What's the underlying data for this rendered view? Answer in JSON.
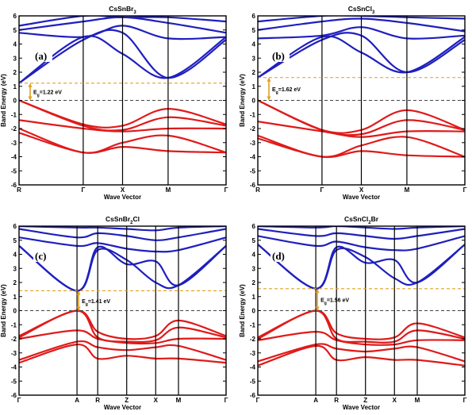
{
  "chart_data": [
    {
      "type": "line",
      "title": "CsSnBr3",
      "panel_label": "(a)",
      "xlabel": "Wave Vector",
      "ylabel": "Band Energy (eV)",
      "ylim": [
        -6,
        6
      ],
      "yticks": [
        "-6",
        "-5",
        "-4",
        "-3",
        "-2",
        "-1",
        "0",
        "1",
        "2",
        "3",
        "4",
        "5",
        "6"
      ],
      "kpoints": [
        "R",
        "Γ",
        "X",
        "M",
        "Γ"
      ],
      "gap_label": "Eg=1.22 eV",
      "gap_ev": 1.22,
      "fermi_level": 0,
      "vbm_k_index": 0,
      "grid": false,
      "colors": {
        "conduction": "#1f1fbf",
        "valence": "#e01a1a",
        "fermi": "#444444",
        "gap": "#e0a020"
      },
      "series": [
        {
          "band": "conduction",
          "values": [
            1.22,
            4.3,
            4.8,
            1.6,
            4.3
          ]
        },
        {
          "band": "conduction",
          "values": [
            1.22,
            4.5,
            3.3,
            1.6,
            4.5
          ]
        },
        {
          "band": "conduction",
          "values": [
            4.8,
            4.5,
            5.3,
            4.4,
            4.5
          ]
        },
        {
          "band": "conduction",
          "values": [
            5.0,
            5.6,
            5.9,
            5.5,
            4.8
          ]
        },
        {
          "band": "conduction",
          "values": [
            5.3,
            6.0,
            5.9,
            5.9,
            5.6
          ]
        },
        {
          "band": "valence",
          "values": [
            0.0,
            -1.7,
            -1.8,
            -0.6,
            -1.7
          ]
        },
        {
          "band": "valence",
          "values": [
            0.0,
            -1.8,
            -2.1,
            -1.2,
            -1.8
          ]
        },
        {
          "band": "valence",
          "values": [
            -1.4,
            -2.0,
            -2.2,
            -2.0,
            -2.0
          ]
        },
        {
          "band": "valence",
          "values": [
            -2.0,
            -3.7,
            -3.0,
            -2.5,
            -3.7
          ]
        },
        {
          "band": "valence",
          "values": [
            -2.3,
            -3.7,
            -3.3,
            -3.6,
            -3.7
          ]
        }
      ]
    },
    {
      "type": "line",
      "title": "CsSnCl3",
      "panel_label": "(b)",
      "xlabel": "Wave Vector",
      "ylabel": "Band Energy (eV)",
      "ylim": [
        -6,
        6
      ],
      "yticks": [
        "-6",
        "-5",
        "-4",
        "-3",
        "-2",
        "-1",
        "0",
        "1",
        "2",
        "3",
        "4",
        "5",
        "6"
      ],
      "kpoints": [
        "R",
        "Γ",
        "X",
        "M",
        "Γ"
      ],
      "gap_label": "Eg=1.62 eV",
      "gap_ev": 1.62,
      "fermi_level": 0,
      "vbm_k_index": 0,
      "grid": false,
      "colors": {
        "conduction": "#1f1fbf",
        "valence": "#e01a1a",
        "fermi": "#444444",
        "gap": "#e0a020"
      },
      "series": [
        {
          "band": "conduction",
          "values": [
            1.62,
            4.3,
            4.6,
            2.0,
            4.3
          ]
        },
        {
          "band": "conduction",
          "values": [
            1.62,
            4.5,
            3.4,
            2.0,
            4.5
          ]
        },
        {
          "band": "conduction",
          "values": [
            4.4,
            4.6,
            5.2,
            4.4,
            4.6
          ]
        },
        {
          "band": "conduction",
          "values": [
            5.0,
            5.6,
            5.8,
            5.5,
            4.9
          ]
        },
        {
          "band": "conduction",
          "values": [
            5.6,
            6.0,
            6.0,
            5.9,
            5.8
          ]
        },
        {
          "band": "valence",
          "values": [
            0.0,
            -2.1,
            -2.1,
            -0.7,
            -2.1
          ]
        },
        {
          "band": "valence",
          "values": [
            0.0,
            -2.1,
            -2.4,
            -1.4,
            -2.1
          ]
        },
        {
          "band": "valence",
          "values": [
            -1.5,
            -2.2,
            -2.6,
            -2.2,
            -2.2
          ]
        },
        {
          "band": "valence",
          "values": [
            -2.5,
            -4.0,
            -3.2,
            -2.6,
            -4.0
          ]
        },
        {
          "band": "valence",
          "values": [
            -2.7,
            -4.0,
            -3.6,
            -3.9,
            -4.0
          ]
        }
      ]
    },
    {
      "type": "line",
      "title": "CsSnBr2Cl",
      "panel_label": "(c)",
      "xlabel": "Wave Vector",
      "ylabel": "Band Energy (eV)",
      "ylim": [
        -6,
        6
      ],
      "yticks": [
        "-6",
        "-5",
        "-4",
        "-3",
        "-2",
        "-1",
        "0",
        "1",
        "2",
        "3",
        "4",
        "5",
        "6"
      ],
      "kpoints": [
        "Γ",
        "A",
        "R",
        "Z",
        "X",
        "M",
        "Γ"
      ],
      "gap_label": "Eg=1.41 eV",
      "gap_ev": 1.41,
      "fermi_level": 0,
      "vbm_k_index": 1,
      "grid": false,
      "colors": {
        "conduction": "#1f1fbf",
        "valence": "#e01a1a",
        "fermi": "#444444",
        "gap": "#e0a020"
      },
      "series": [
        {
          "band": "conduction",
          "values": [
            4.6,
            1.41,
            4.3,
            3.6,
            2.0,
            1.8,
            4.6
          ]
        },
        {
          "band": "conduction",
          "values": [
            4.6,
            1.41,
            4.5,
            3.3,
            3.5,
            1.8,
            4.6
          ]
        },
        {
          "band": "conduction",
          "values": [
            5.2,
            4.6,
            4.8,
            4.4,
            4.2,
            4.3,
            5.2
          ]
        },
        {
          "band": "conduction",
          "values": [
            5.8,
            5.2,
            5.5,
            5.3,
            5.0,
            5.2,
            5.8
          ]
        },
        {
          "band": "conduction",
          "values": [
            6.0,
            5.9,
            5.9,
            5.8,
            5.7,
            5.9,
            6.0
          ]
        },
        {
          "band": "valence",
          "values": [
            -1.8,
            0.0,
            -1.5,
            -2.0,
            -1.8,
            -0.7,
            -1.8
          ]
        },
        {
          "band": "valence",
          "values": [
            -1.9,
            0.0,
            -1.9,
            -2.2,
            -2.1,
            -1.2,
            -1.9
          ]
        },
        {
          "band": "valence",
          "values": [
            -2.0,
            -1.4,
            -2.0,
            -2.3,
            -2.3,
            -2.0,
            -2.0
          ]
        },
        {
          "band": "valence",
          "values": [
            -3.5,
            -2.2,
            -2.6,
            -2.8,
            -2.6,
            -2.5,
            -3.5
          ]
        },
        {
          "band": "valence",
          "values": [
            -3.7,
            -2.4,
            -3.4,
            -3.2,
            -3.4,
            -3.4,
            -3.7
          ]
        }
      ]
    },
    {
      "type": "line",
      "title": "CsSnCl2Br",
      "panel_label": "(d)",
      "xlabel": "Wave Vector",
      "ylabel": "Band Energy (eV)",
      "ylim": [
        -6,
        6
      ],
      "yticks": [
        "-6",
        "-5",
        "-4",
        "-3",
        "-2",
        "-1",
        "0",
        "1",
        "2",
        "3",
        "4",
        "5",
        "6"
      ],
      "kpoints": [
        "Γ",
        "A",
        "R",
        "Z",
        "X",
        "M",
        "Γ"
      ],
      "gap_label": "Eg=1.56 eV",
      "gap_ev": 1.56,
      "fermi_level": 0,
      "vbm_k_index": 1,
      "grid": false,
      "colors": {
        "conduction": "#1f1fbf",
        "valence": "#e01a1a",
        "fermi": "#444444",
        "gap": "#e0a020"
      },
      "series": [
        {
          "band": "conduction",
          "values": [
            4.7,
            1.56,
            4.3,
            3.8,
            2.3,
            2.0,
            4.7
          ]
        },
        {
          "band": "conduction",
          "values": [
            4.7,
            1.56,
            4.5,
            3.4,
            3.6,
            2.0,
            4.7
          ]
        },
        {
          "band": "conduction",
          "values": [
            5.3,
            4.6,
            4.9,
            4.5,
            4.3,
            4.4,
            5.3
          ]
        },
        {
          "band": "conduction",
          "values": [
            5.8,
            5.3,
            5.5,
            5.3,
            5.1,
            5.3,
            5.8
          ]
        },
        {
          "band": "conduction",
          "values": [
            6.0,
            5.9,
            6.0,
            5.9,
            5.8,
            5.9,
            6.0
          ]
        },
        {
          "band": "valence",
          "values": [
            -1.9,
            0.0,
            -1.6,
            -2.0,
            -1.9,
            -0.9,
            -1.9
          ]
        },
        {
          "band": "valence",
          "values": [
            -2.0,
            0.0,
            -2.0,
            -2.2,
            -2.2,
            -1.4,
            -2.0
          ]
        },
        {
          "band": "valence",
          "values": [
            -2.1,
            -1.5,
            -2.1,
            -2.4,
            -2.4,
            -2.1,
            -2.1
          ]
        },
        {
          "band": "valence",
          "values": [
            -3.6,
            -2.4,
            -2.7,
            -2.9,
            -2.7,
            -2.6,
            -3.6
          ]
        },
        {
          "band": "valence",
          "values": [
            -3.9,
            -2.5,
            -3.5,
            -3.3,
            -3.5,
            -3.5,
            -3.9
          ]
        }
      ]
    }
  ]
}
